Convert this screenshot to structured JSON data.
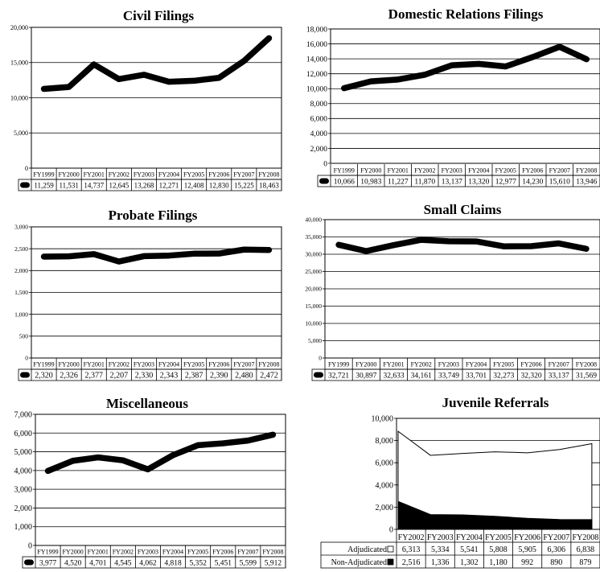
{
  "chart_data": [
    {
      "type": "line",
      "title": "Civil Filings",
      "categories": [
        "FY1999",
        "FY2000",
        "FY2001",
        "FY2002",
        "FY2003",
        "FY2004",
        "FY2005",
        "FY2006",
        "FY2007",
        "FY2008"
      ],
      "values": [
        11259,
        11531,
        14737,
        12645,
        13268,
        12271,
        12408,
        12830,
        15225,
        18463
      ],
      "value_labels": [
        "11,259",
        "11,531",
        "14,737",
        "12,645",
        "13,268",
        "12,271",
        "12,408",
        "12,830",
        "15,225",
        "18,463"
      ],
      "ylim": [
        0,
        20000
      ],
      "yticks": [
        0,
        5000,
        10000,
        15000,
        20000
      ],
      "ytick_labels": [
        "0",
        "5,000",
        "10,000",
        "15,000",
        "20,000"
      ],
      "grid": true
    },
    {
      "type": "line",
      "title": "Domestic Relations Filings",
      "categories": [
        "FY1999",
        "FY2000",
        "FY2001",
        "FY2002",
        "FY2003",
        "FY2004",
        "FY2005",
        "FY2006",
        "FY2007",
        "FY2008"
      ],
      "values": [
        10066,
        10983,
        11227,
        11870,
        13137,
        13320,
        12977,
        14230,
        15610,
        13946
      ],
      "value_labels": [
        "10,066",
        "10,983",
        "11,227",
        "11,870",
        "13,137",
        "13,320",
        "12,977",
        "14,230",
        "15,610",
        "13,946"
      ],
      "ylim": [
        0,
        18000
      ],
      "yticks": [
        0,
        2000,
        4000,
        6000,
        8000,
        10000,
        12000,
        14000,
        16000,
        18000
      ],
      "ytick_labels": [
        "0",
        "2,000",
        "4,000",
        "6,000",
        "8,000",
        "10,000",
        "12,000",
        "14,000",
        "16,000",
        "18,000"
      ],
      "grid": true
    },
    {
      "type": "line",
      "title": "Probate Filings",
      "categories": [
        "FY1999",
        "FY2000",
        "FY2001",
        "FY2002",
        "FY2003",
        "FY2004",
        "FY2005",
        "FY2006",
        "FY2007",
        "FY2008"
      ],
      "values": [
        2320,
        2326,
        2377,
        2207,
        2330,
        2343,
        2387,
        2390,
        2480,
        2472
      ],
      "value_labels": [
        "2,320",
        "2,326",
        "2,377",
        "2,207",
        "2,330",
        "2,343",
        "2,387",
        "2,390",
        "2,480",
        "2,472"
      ],
      "ylim": [
        0,
        3000
      ],
      "yticks": [
        0,
        500,
        1000,
        1500,
        2000,
        2500,
        3000
      ],
      "ytick_labels": [
        "0",
        "500",
        "1,000",
        "1,500",
        "2,000",
        "2,500",
        "3,000"
      ],
      "grid": true
    },
    {
      "type": "line",
      "title": "Small Claims",
      "categories": [
        "FY1999",
        "FY2000",
        "FY2001",
        "FY2002",
        "FY2003",
        "FY2004",
        "FY2005",
        "FY2006",
        "FY2007",
        "FY2008"
      ],
      "values": [
        32721,
        30897,
        32633,
        34161,
        33749,
        33701,
        32273,
        32320,
        33137,
        31569
      ],
      "value_labels": [
        "32,721",
        "30,897",
        "32,633",
        "34,161",
        "33,749",
        "33,701",
        "32,273",
        "32,320",
        "33,137",
        "31,569"
      ],
      "ylim": [
        0,
        40000
      ],
      "yticks": [
        0,
        5000,
        10000,
        15000,
        20000,
        25000,
        30000,
        35000,
        40000
      ],
      "ytick_labels": [
        "0",
        "5,000",
        "10,000",
        "15,000",
        "20,000",
        "25,000",
        "30,000",
        "35,000",
        "40,000"
      ],
      "grid": true
    },
    {
      "type": "line",
      "title": "Miscellaneous",
      "categories": [
        "FY1999",
        "FY2000",
        "FY2001",
        "FY2002",
        "FY2003",
        "FY2004",
        "FY2005",
        "FY2006",
        "FY2007",
        "FY2008"
      ],
      "values": [
        3977,
        4520,
        4701,
        4545,
        4062,
        4818,
        5352,
        5451,
        5599,
        5912
      ],
      "value_labels": [
        "3,977",
        "4,520",
        "4,701",
        "4,545",
        "4,062",
        "4,818",
        "5,352",
        "5,451",
        "5,599",
        "5,912"
      ],
      "ylim": [
        0,
        7000
      ],
      "yticks": [
        0,
        1000,
        2000,
        3000,
        4000,
        5000,
        6000,
        7000
      ],
      "ytick_labels": [
        "0",
        "1,000",
        "2,000",
        "3,000",
        "4,000",
        "5,000",
        "6,000",
        "7,000"
      ],
      "grid": true
    },
    {
      "type": "area",
      "title": "Juvenile Referrals",
      "stacked": true,
      "categories": [
        "FY2002",
        "FY2003",
        "FY2004",
        "FY2005",
        "FY2006",
        "FY2007",
        "FY2008"
      ],
      "series": [
        {
          "name": "Non-Adjudicated",
          "values": [
            2516,
            1336,
            1302,
            1180,
            992,
            890,
            879
          ],
          "value_labels": [
            "2,516",
            "1,336",
            "1,302",
            "1,180",
            "992",
            "890",
            "879"
          ],
          "color": "#000000"
        },
        {
          "name": "Adjudicated",
          "values": [
            6313,
            5334,
            5541,
            5808,
            5905,
            6306,
            6838
          ],
          "value_labels": [
            "6,313",
            "5,334",
            "5,541",
            "5,808",
            "5,905",
            "6,306",
            "6,838"
          ],
          "color": "#ffffff"
        }
      ],
      "ylim": [
        0,
        10000
      ],
      "yticks": [
        0,
        2000,
        4000,
        6000,
        8000,
        10000
      ],
      "ytick_labels": [
        "0",
        "2,000",
        "4,000",
        "6,000",
        "8,000",
        "10,000"
      ],
      "grid": true
    }
  ]
}
